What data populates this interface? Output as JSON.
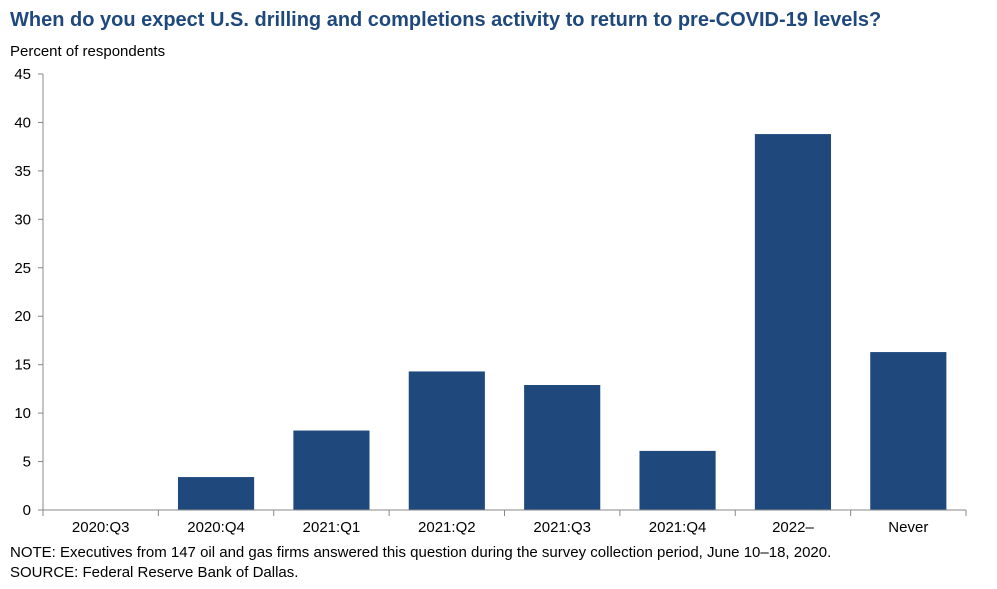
{
  "chart_data": {
    "type": "bar",
    "title": "When do you expect U.S. drilling  and completions activity to return to pre-COVID-19  levels?",
    "ylabel": "Percent  of respondents",
    "xlabel": "",
    "categories": [
      "2020:Q3",
      "2020:Q4",
      "2021:Q1",
      "2021:Q2",
      "2021:Q3",
      "2021:Q4",
      "2022–",
      "Never"
    ],
    "values": [
      0,
      3.4,
      8.2,
      14.3,
      12.9,
      6.1,
      38.8,
      16.3
    ],
    "ylim": [
      0,
      45
    ],
    "yticks": [
      0,
      5,
      10,
      15,
      20,
      25,
      30,
      35,
      40,
      45
    ],
    "grid": false,
    "legend": "none",
    "bar_color": "#1f497d"
  },
  "notes": {
    "note": "NOTE:  Executives  from  147  oil and  gas firms  answered  this  question  during  the  survey  collection  period,  June  10–18,  2020.",
    "source": "SOURCE:  Federal  Reserve  Bank  of Dallas."
  }
}
